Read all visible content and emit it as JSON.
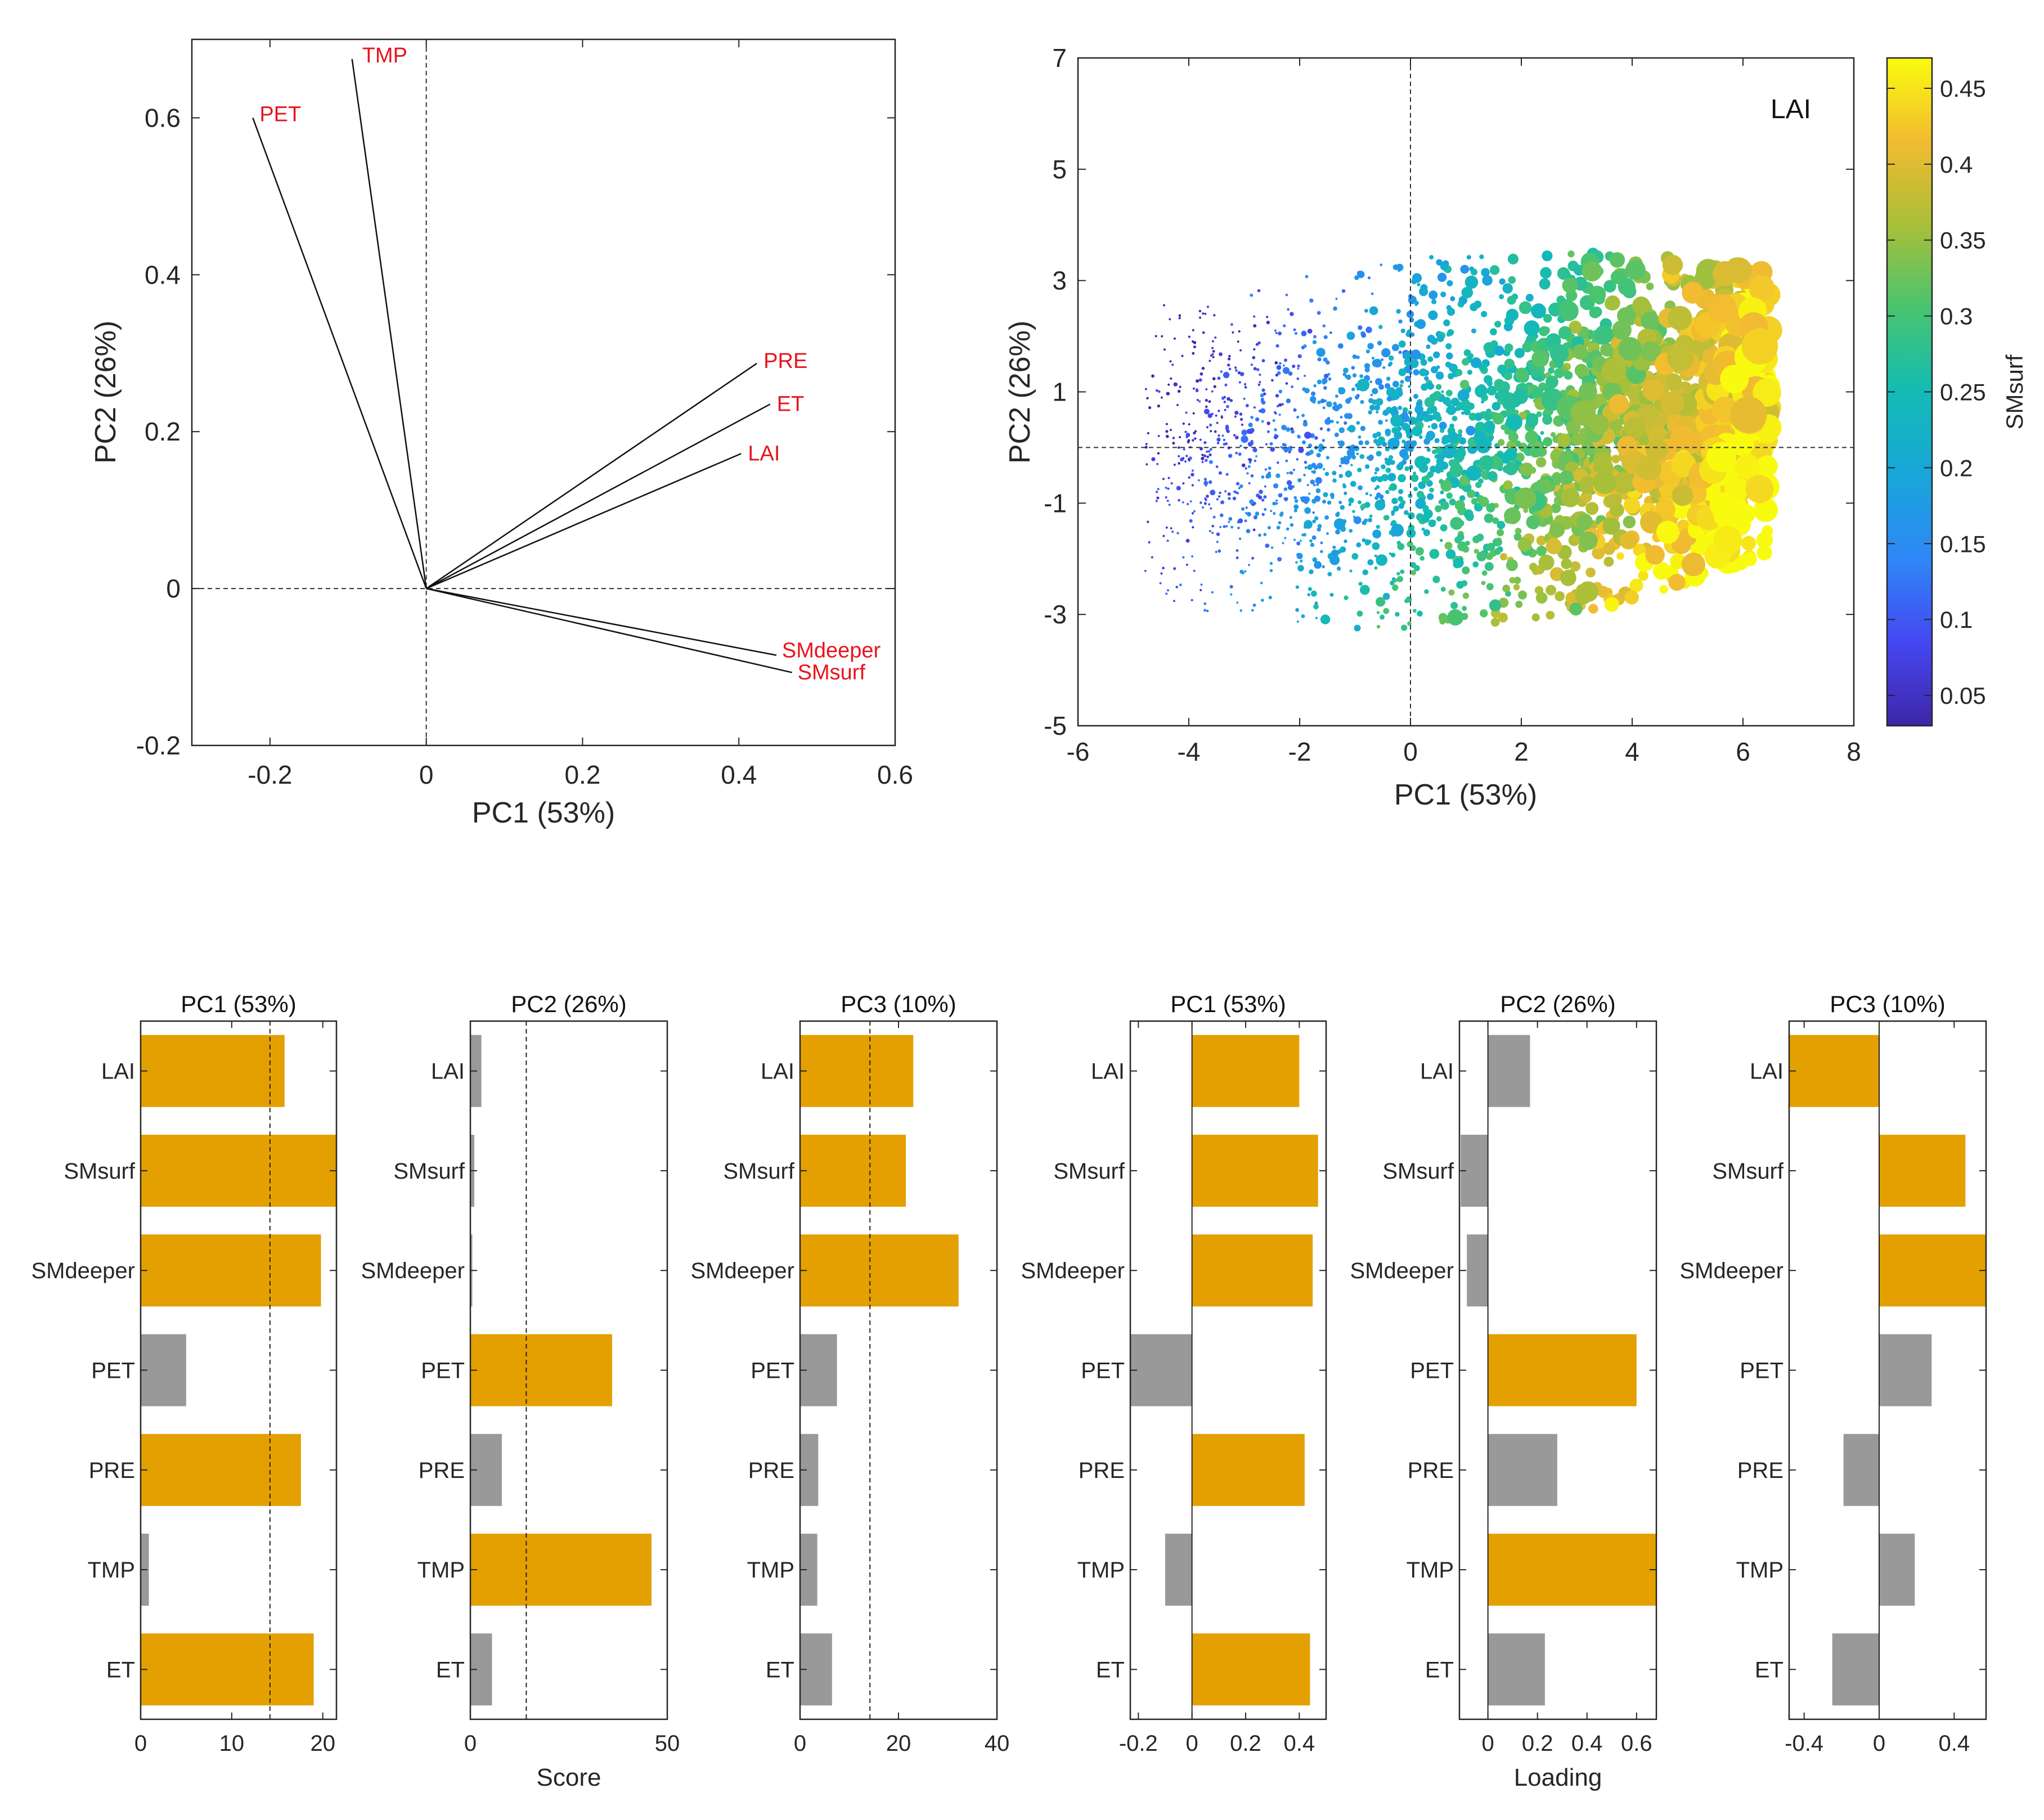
{
  "colors": {
    "highlight": "#E3A000",
    "neutral": "#999999",
    "arrow_label": "#E8141E",
    "axis": "#262626"
  },
  "chart_data": [
    {
      "id": "biplot",
      "type": "scatter",
      "subtype": "biplot",
      "title": "",
      "xlabel": "PC1 (53%)",
      "ylabel": "PC2 (26%)",
      "xlim": [
        -0.3,
        0.6
      ],
      "ylim": [
        -0.2,
        0.7
      ],
      "xticks": [
        -0.2,
        0,
        0.2,
        0.4,
        0.6
      ],
      "yticks": [
        -0.2,
        0,
        0.2,
        0.4,
        0.6
      ],
      "xtick_labels": [
        "-0.2",
        "0",
        "0.2",
        "0.4",
        "0.6"
      ],
      "ytick_labels": [
        "-0.2",
        "0",
        "0.2",
        "0.4",
        "0.6"
      ],
      "vectors": [
        {
          "name": "TMP",
          "x": -0.095,
          "y": 0.675
        },
        {
          "name": "PET",
          "x": -0.222,
          "y": 0.6
        },
        {
          "name": "PRE",
          "x": 0.423,
          "y": 0.287
        },
        {
          "name": "ET",
          "x": 0.44,
          "y": 0.235
        },
        {
          "name": "LAI",
          "x": 0.403,
          "y": 0.172
        },
        {
          "name": "SMdeeper",
          "x": 0.448,
          "y": -0.085
        },
        {
          "name": "SMsurf",
          "x": 0.468,
          "y": -0.107
        }
      ]
    },
    {
      "id": "scores",
      "type": "scatter",
      "title": "LAI",
      "xlabel": "PC1 (53%)",
      "ylabel": "PC2 (26%)",
      "xlim": [
        -6,
        8
      ],
      "ylim": [
        -5,
        7
      ],
      "xticks": [
        -6,
        -4,
        -2,
        0,
        2,
        4,
        6,
        8
      ],
      "yticks": [
        -5,
        -3,
        -1,
        1,
        3,
        5,
        7
      ],
      "xtick_labels": [
        "-6",
        "-4",
        "-2",
        "0",
        "2",
        "4",
        "6",
        "8"
      ],
      "ytick_labels": [
        "-5",
        "-3",
        "-1",
        "1",
        "3",
        "5",
        "7"
      ],
      "color_variable": "SMsurf",
      "size_variable": "LAI",
      "colorbar": {
        "label": "SMsurf",
        "lim": [
          0.03,
          0.47
        ],
        "ticks": [
          0.05,
          0.1,
          0.15,
          0.2,
          0.25,
          0.3,
          0.35,
          0.4,
          0.45
        ],
        "tick_labels": [
          "0.05",
          "0.1",
          "0.15",
          "0.2",
          "0.25",
          "0.3",
          "0.35",
          "0.4",
          "0.45"
        ]
      },
      "n_points": 2600,
      "point_cloud": {
        "x_range": [
          -4.8,
          6.5
        ],
        "y_range": [
          -3.3,
          3.8
        ],
        "note": "dense cloud; color (SMsurf) and marker size (LAI) increase with PC1"
      }
    },
    {
      "id": "score-pc1",
      "type": "bar",
      "orientation": "horizontal",
      "title": "PC1 (53%)",
      "xlabel": "",
      "categories": [
        "LAI",
        "SMsurf",
        "SMdeeper",
        "PET",
        "PRE",
        "TMP",
        "ET"
      ],
      "values": [
        15.8,
        21.5,
        19.8,
        5.0,
        17.6,
        0.9,
        19.0
      ],
      "highlighted": [
        true,
        true,
        true,
        false,
        true,
        false,
        true
      ],
      "xlim": [
        0,
        21.5
      ],
      "xticks": [
        0,
        10,
        20
      ],
      "xtick_labels": [
        "0",
        "10",
        "20"
      ],
      "threshold": 14.2
    },
    {
      "id": "score-pc2",
      "type": "bar",
      "orientation": "horizontal",
      "title": "PC2 (26%)",
      "xlabel": "Score",
      "categories": [
        "LAI",
        "SMsurf",
        "SMdeeper",
        "PET",
        "PRE",
        "TMP",
        "ET"
      ],
      "values": [
        2.8,
        1.0,
        0.5,
        36.0,
        8.0,
        46.0,
        5.5
      ],
      "highlighted": [
        false,
        false,
        false,
        true,
        false,
        true,
        false
      ],
      "xlim": [
        0,
        50
      ],
      "xticks": [
        0,
        50
      ],
      "xtick_labels": [
        "0",
        "50"
      ],
      "threshold": 14.2
    },
    {
      "id": "score-pc3",
      "type": "bar",
      "orientation": "horizontal",
      "title": "PC3 (10%)",
      "xlabel": "",
      "categories": [
        "LAI",
        "SMsurf",
        "SMdeeper",
        "PET",
        "PRE",
        "TMP",
        "ET"
      ],
      "values": [
        23.0,
        21.5,
        32.2,
        7.5,
        3.7,
        3.5,
        6.5
      ],
      "highlighted": [
        true,
        true,
        true,
        false,
        false,
        false,
        false
      ],
      "xlim": [
        0,
        40
      ],
      "xticks": [
        0,
        20,
        40
      ],
      "xtick_labels": [
        "0",
        "20",
        "40"
      ],
      "threshold": 14.2
    },
    {
      "id": "loading-pc1",
      "type": "bar",
      "orientation": "horizontal",
      "title": "PC1 (53%)",
      "xlabel": "",
      "categories": [
        "LAI",
        "SMsurf",
        "SMdeeper",
        "PET",
        "PRE",
        "TMP",
        "ET"
      ],
      "values": [
        0.4,
        0.47,
        0.45,
        -0.23,
        0.42,
        -0.1,
        0.44
      ],
      "highlighted": [
        true,
        true,
        true,
        false,
        true,
        false,
        true
      ],
      "xlim": [
        -0.23,
        0.5
      ],
      "xticks": [
        -0.2,
        0,
        0.2,
        0.4
      ],
      "xtick_labels": [
        "-0.2",
        "0",
        "0.2",
        "0.4"
      ]
    },
    {
      "id": "loading-pc2",
      "type": "bar",
      "orientation": "horizontal",
      "title": "PC2 (26%)",
      "xlabel": "Loading",
      "categories": [
        "LAI",
        "SMsurf",
        "SMdeeper",
        "PET",
        "PRE",
        "TMP",
        "ET"
      ],
      "values": [
        0.17,
        -0.11,
        -0.085,
        0.6,
        0.28,
        0.68,
        0.23
      ],
      "highlighted": [
        false,
        false,
        false,
        true,
        false,
        true,
        false
      ],
      "xlim": [
        -0.115,
        0.68
      ],
      "xticks": [
        0,
        0.2,
        0.4,
        0.6
      ],
      "xtick_labels": [
        "0",
        "0.2",
        "0.4",
        "0.6"
      ]
    },
    {
      "id": "loading-pc3",
      "type": "bar",
      "orientation": "horizontal",
      "title": "PC3 (10%)",
      "xlabel": "",
      "categories": [
        "LAI",
        "SMsurf",
        "SMdeeper",
        "PET",
        "PRE",
        "TMP",
        "ET"
      ],
      "values": [
        -0.48,
        0.46,
        0.57,
        0.28,
        -0.19,
        0.19,
        -0.25
      ],
      "highlighted": [
        true,
        true,
        true,
        false,
        false,
        false,
        false
      ],
      "xlim": [
        -0.48,
        0.57
      ],
      "xticks": [
        -0.4,
        0,
        0.4
      ],
      "xtick_labels": [
        "-0.4",
        "0",
        "0.4"
      ]
    }
  ]
}
